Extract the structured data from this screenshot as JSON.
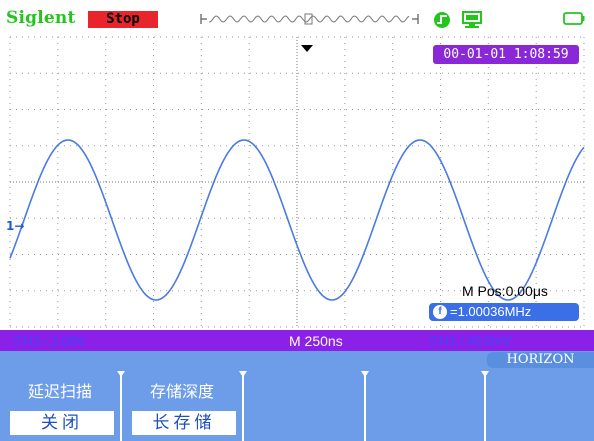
{
  "status_bar": {
    "brand": "Siglent",
    "run_state": "Stop",
    "icons": [
      "memory-waveform-strip-icon",
      "trigger-status-icon",
      "usb-device-icon",
      "battery-icon"
    ]
  },
  "screen": {
    "datetime": "00-01-01 1:08:59",
    "m_pos": "M Pos:0.00μs",
    "frequency": "=1.00036MHz",
    "frequency_icon_glyph": "f",
    "channel_marker": "1→"
  },
  "info_bar": {
    "ch1_scale": "CH1~ 1.00V",
    "timebase": "M 250ns",
    "trigger": "CH1 / 40.0mV"
  },
  "menu": {
    "title": "HORIZON",
    "softkeys": [
      {
        "label": "延迟扫描",
        "value": "关闭"
      },
      {
        "label": "存储深度",
        "value": "长存储"
      },
      {
        "label": "",
        "value": ""
      },
      {
        "label": "",
        "value": ""
      },
      {
        "label": "",
        "value": ""
      }
    ]
  },
  "colors": {
    "brand": "#24c61e",
    "stop_badge": "#e8252a",
    "waveform": "#4a7be0",
    "info_bar": "#8b21e6",
    "menu_bg": "#6d9de8",
    "grid": "#9a9a9a"
  },
  "waveform": {
    "shape": "sine",
    "frequency_mhz": 1.00036,
    "cycles_visible": 3.5,
    "timebase": "250ns/div"
  }
}
